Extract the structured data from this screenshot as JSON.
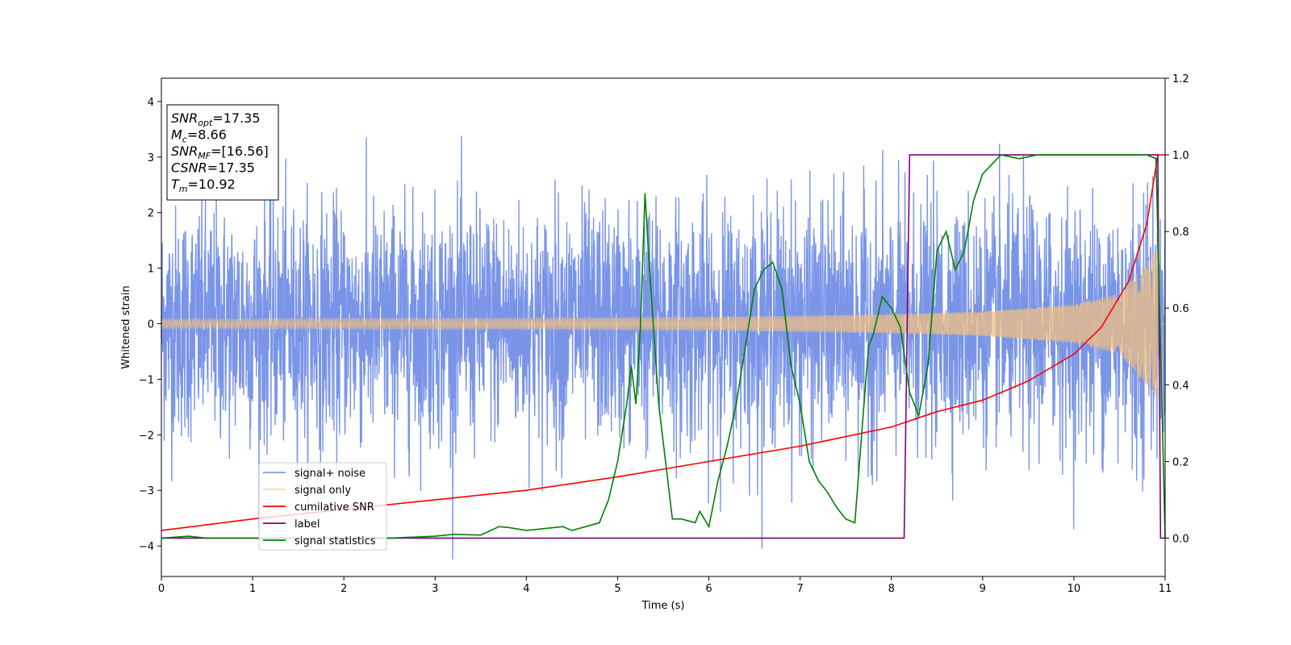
{
  "chart_data": {
    "type": "line",
    "xlabel": "Time (s)",
    "ylabel": "Whitened strain",
    "xlim": [
      0,
      11
    ],
    "ylim_left": [
      -4.55,
      4.42
    ],
    "ylim_right": [
      -0.1,
      1.2
    ],
    "x_ticks": [
      0,
      1,
      2,
      3,
      4,
      5,
      6,
      7,
      8,
      9,
      10,
      11
    ],
    "y_ticks_left": [
      -4,
      -3,
      -2,
      -1,
      0,
      1,
      2,
      3,
      4
    ],
    "y_ticks_right": [
      0.0,
      0.2,
      0.4,
      0.6,
      0.8,
      1.0,
      1.2
    ],
    "legend_position": "lower-left",
    "colors": {
      "signal_noise": "#6b8ae6",
      "signal_only": "#f0c080",
      "cumulative_snr": "#ff0000",
      "label": "#800080",
      "signal_statistics": "#008000"
    },
    "series": [
      {
        "name": "signal+ noise",
        "axis": "left",
        "description_values": "noise amplitude approx ±2.5, peaks to ±4"
      },
      {
        "name": "signal only",
        "axis": "left",
        "envelope": {
          "x": [
            0,
            2,
            4,
            6,
            8,
            9,
            10,
            10.5,
            10.92
          ],
          "amp": [
            0.08,
            0.09,
            0.1,
            0.12,
            0.17,
            0.22,
            0.35,
            0.55,
            1.35
          ]
        }
      },
      {
        "name": "cumilative SNR",
        "axis": "right",
        "x": [
          0,
          1,
          2,
          3,
          4,
          5,
          6,
          7,
          8,
          8.5,
          9,
          9.5,
          10,
          10.3,
          10.6,
          10.8,
          10.92,
          11
        ],
        "y": [
          0.02,
          0.05,
          0.075,
          0.1,
          0.125,
          0.16,
          0.2,
          0.24,
          0.29,
          0.33,
          0.36,
          0.41,
          0.48,
          0.55,
          0.67,
          0.82,
          1.0,
          1.0
        ]
      },
      {
        "name": "label",
        "axis": "right",
        "x": [
          0,
          8.14,
          8.2,
          10.92,
          10.95,
          11
        ],
        "y": [
          0.0,
          0.0,
          1.0,
          1.0,
          0.0,
          0.0
        ]
      },
      {
        "name": "signal statistics",
        "axis": "right",
        "x": [
          0,
          0.3,
          0.5,
          1,
          2,
          2.5,
          3,
          3.2,
          3.5,
          3.7,
          3.8,
          4,
          4.4,
          4.5,
          4.8,
          4.9,
          5.0,
          5.1,
          5.15,
          5.2,
          5.25,
          5.3,
          5.35,
          5.45,
          5.6,
          5.7,
          5.85,
          5.9,
          6.0,
          6.1,
          6.2,
          6.3,
          6.4,
          6.5,
          6.6,
          6.7,
          6.8,
          6.9,
          7.0,
          7.1,
          7.2,
          7.3,
          7.4,
          7.5,
          7.6,
          7.7,
          7.75,
          7.8,
          7.9,
          8.0,
          8.1,
          8.2,
          8.3,
          8.4,
          8.5,
          8.6,
          8.7,
          8.8,
          8.9,
          9.0,
          9.2,
          9.4,
          9.6,
          10,
          10.5,
          10.8,
          10.9,
          11
        ],
        "y": [
          0.0,
          0.005,
          0.0,
          0.0,
          0.0,
          0.0,
          0.005,
          0.01,
          0.008,
          0.03,
          0.028,
          0.02,
          0.03,
          0.02,
          0.04,
          0.1,
          0.2,
          0.35,
          0.45,
          0.35,
          0.55,
          0.9,
          0.7,
          0.35,
          0.05,
          0.05,
          0.04,
          0.07,
          0.03,
          0.15,
          0.24,
          0.35,
          0.5,
          0.65,
          0.7,
          0.72,
          0.65,
          0.45,
          0.35,
          0.2,
          0.15,
          0.12,
          0.08,
          0.05,
          0.04,
          0.35,
          0.5,
          0.53,
          0.63,
          0.6,
          0.55,
          0.38,
          0.32,
          0.45,
          0.75,
          0.8,
          0.7,
          0.75,
          0.88,
          0.95,
          1.0,
          0.99,
          1.0,
          1.0,
          1.0,
          1.0,
          0.99,
          0.0
        ]
      }
    ],
    "annotation_box": {
      "lines": [
        {
          "base": "SNR",
          "sub": "opt",
          "value": "=17.35"
        },
        {
          "base": "M",
          "sub": "c",
          "value": "=8.66"
        },
        {
          "base": "SNR",
          "sub": "MF",
          "value": "=[16.56]"
        },
        {
          "base": "CSNR",
          "sub": "",
          "value": "=17.35"
        },
        {
          "base": "T",
          "sub": "m",
          "value": "=10.92"
        }
      ]
    }
  }
}
